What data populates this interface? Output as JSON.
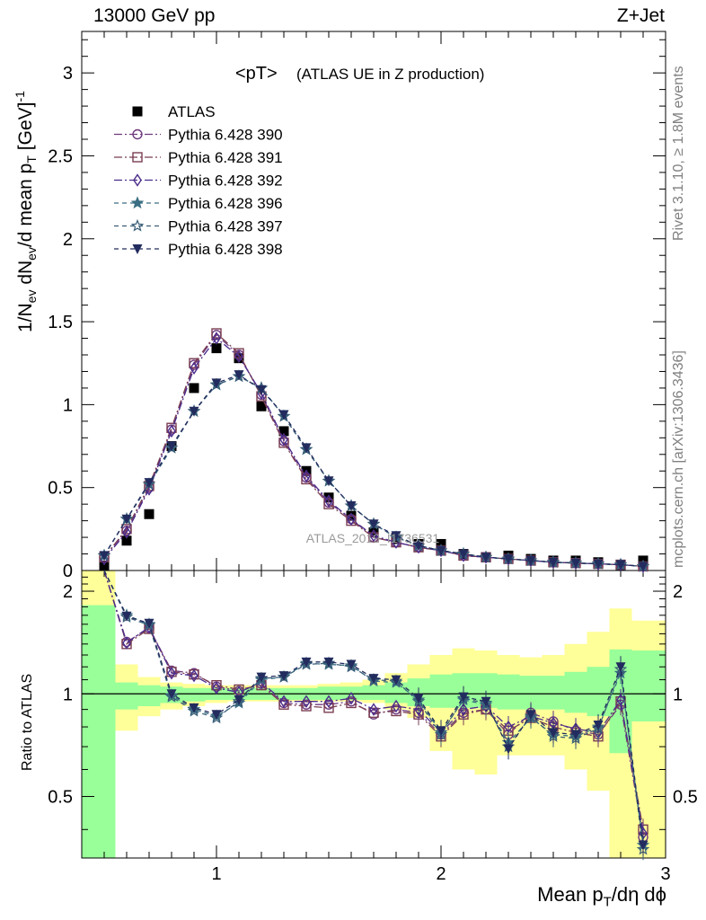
{
  "header": {
    "left": "13000 GeV pp",
    "right": "Z+Jet"
  },
  "side_labels": {
    "rivet": "Rivet 3.1.10, ≥ 1.8M events",
    "mcplots": "mcplots.cern.ch [arXiv:1306.3436]"
  },
  "watermark": "ATLAS_2019_I1736531",
  "chart_data": [
    {
      "type": "scatter",
      "title": "<pT>",
      "subtitle": "(ATLAS UE in Z production)",
      "ylabel": "1/N_ev dN_ev/d mean p_T [GeV]^-1",
      "xlabel": "Mean p_T/dη dϕ",
      "xlim": [
        0.4,
        3.0
      ],
      "ylim": [
        0,
        3.25
      ],
      "x_ticks": [
        "1",
        "2",
        "3"
      ],
      "y_ticks": [
        "0",
        "0.5",
        "1",
        "1.5",
        "2",
        "2.5",
        "3"
      ],
      "legend_position": "top-left",
      "x": [
        0.5,
        0.6,
        0.7,
        0.8,
        0.9,
        1.0,
        1.1,
        1.2,
        1.3,
        1.4,
        1.5,
        1.6,
        1.7,
        1.8,
        1.9,
        2.0,
        2.1,
        2.2,
        2.3,
        2.4,
        2.5,
        2.6,
        2.7,
        2.8,
        2.9
      ],
      "series": [
        {
          "name": "ATLAS",
          "marker": "square-filled",
          "color": "#000000",
          "dash": "",
          "values": [
            0.03,
            0.18,
            0.34,
            0.75,
            1.1,
            1.34,
            1.28,
            0.99,
            0.84,
            0.6,
            0.44,
            0.33,
            0.23,
            0.19,
            0.16,
            0.16,
            0.1,
            0.08,
            0.09,
            0.07,
            0.06,
            0.06,
            0.05,
            0.03,
            0.06
          ]
        },
        {
          "name": "Pythia 6.428 390",
          "marker": "circle-open",
          "color": "#6e3a7e",
          "dash": "9,3,2,3",
          "values": [
            0.08,
            0.24,
            0.5,
            0.85,
            1.24,
            1.42,
            1.3,
            1.06,
            0.78,
            0.56,
            0.41,
            0.31,
            0.2,
            0.17,
            0.14,
            0.12,
            0.09,
            0.08,
            0.07,
            0.06,
            0.05,
            0.045,
            0.04,
            0.035,
            0.025
          ]
        },
        {
          "name": "Pythia 6.428 391",
          "marker": "square-open",
          "color": "#7a3e52",
          "dash": "9,3,2,3",
          "values": [
            0.08,
            0.25,
            0.51,
            0.86,
            1.25,
            1.43,
            1.31,
            1.05,
            0.77,
            0.55,
            0.4,
            0.3,
            0.2,
            0.17,
            0.14,
            0.12,
            0.09,
            0.08,
            0.07,
            0.06,
            0.05,
            0.045,
            0.04,
            0.035,
            0.025
          ]
        },
        {
          "name": "Pythia 6.428 392",
          "marker": "diamond-open",
          "color": "#4b2c8c",
          "dash": "9,3,2,3",
          "values": [
            0.07,
            0.23,
            0.49,
            0.84,
            1.22,
            1.4,
            1.29,
            1.07,
            0.79,
            0.57,
            0.42,
            0.31,
            0.21,
            0.17,
            0.14,
            0.12,
            0.09,
            0.08,
            0.07,
            0.06,
            0.05,
            0.045,
            0.04,
            0.035,
            0.025
          ]
        },
        {
          "name": "Pythia 6.428 396",
          "marker": "star-filled",
          "color": "#3a6e82",
          "dash": "5,4",
          "values": [
            0.09,
            0.31,
            0.52,
            0.74,
            0.96,
            1.12,
            1.17,
            1.1,
            0.93,
            0.73,
            0.54,
            0.39,
            0.28,
            0.2,
            0.15,
            0.12,
            0.1,
            0.08,
            0.07,
            0.06,
            0.05,
            0.045,
            0.04,
            0.035,
            0.025
          ]
        },
        {
          "name": "Pythia 6.428 397",
          "marker": "star-open",
          "color": "#3a5e78",
          "dash": "5,4",
          "values": [
            0.09,
            0.31,
            0.52,
            0.74,
            0.96,
            1.12,
            1.17,
            1.1,
            0.93,
            0.73,
            0.54,
            0.39,
            0.28,
            0.2,
            0.15,
            0.12,
            0.1,
            0.08,
            0.07,
            0.06,
            0.05,
            0.045,
            0.04,
            0.035,
            0.025
          ]
        },
        {
          "name": "Pythia 6.428 398",
          "marker": "triangle-down-filled",
          "color": "#232c5e",
          "dash": "5,4",
          "values": [
            0.09,
            0.31,
            0.53,
            0.75,
            0.96,
            1.13,
            1.18,
            1.09,
            0.94,
            0.74,
            0.54,
            0.39,
            0.28,
            0.21,
            0.15,
            0.12,
            0.1,
            0.08,
            0.07,
            0.06,
            0.05,
            0.045,
            0.04,
            0.035,
            0.025
          ]
        }
      ]
    },
    {
      "type": "line",
      "ylabel": "Ratio to ATLAS",
      "xlim": [
        0.4,
        3.0
      ],
      "ylim": [
        0.33,
        2.3
      ],
      "y_ticks": [
        "0.5",
        "1",
        "2"
      ],
      "reference_line": 1,
      "x_edges": [
        0.4,
        0.55,
        0.65,
        0.75,
        0.85,
        0.95,
        1.05,
        1.15,
        1.25,
        1.35,
        1.45,
        1.55,
        1.65,
        1.75,
        1.85,
        1.95,
        2.05,
        2.15,
        2.25,
        2.35,
        2.45,
        2.55,
        2.65,
        2.75,
        2.85,
        2.95,
        3.0
      ],
      "band_stat": {
        "color": "#99ff99",
        "lower": [
          0.33,
          0.9,
          0.92,
          0.94,
          0.95,
          0.96,
          0.96,
          0.96,
          0.96,
          0.96,
          0.96,
          0.96,
          0.96,
          0.94,
          0.92,
          0.91,
          0.91,
          0.91,
          0.9,
          0.9,
          0.9,
          0.88,
          0.86,
          0.67,
          0.83,
          0.83
        ],
        "upper": [
          1.82,
          1.08,
          1.06,
          1.05,
          1.04,
          1.04,
          1.04,
          1.04,
          1.04,
          1.04,
          1.05,
          1.05,
          1.06,
          1.08,
          1.11,
          1.14,
          1.15,
          1.15,
          1.14,
          1.13,
          1.13,
          1.16,
          1.2,
          1.35,
          1.34,
          1.34
        ]
      },
      "band_total": {
        "color": "#ffff99",
        "lower": [
          0.33,
          0.78,
          0.86,
          0.9,
          0.92,
          0.94,
          0.95,
          0.95,
          0.95,
          0.95,
          0.95,
          0.95,
          0.94,
          0.9,
          0.85,
          0.68,
          0.6,
          0.58,
          0.66,
          0.66,
          0.66,
          0.6,
          0.52,
          0.33,
          0.33,
          0.33
        ],
        "upper": [
          2.3,
          1.22,
          1.12,
          1.08,
          1.07,
          1.06,
          1.06,
          1.06,
          1.06,
          1.06,
          1.07,
          1.08,
          1.1,
          1.15,
          1.22,
          1.3,
          1.36,
          1.34,
          1.3,
          1.28,
          1.3,
          1.4,
          1.52,
          1.78,
          1.64,
          1.64
        ]
      },
      "x": [
        0.5,
        0.6,
        0.7,
        0.8,
        0.9,
        1.0,
        1.1,
        1.2,
        1.3,
        1.4,
        1.5,
        1.6,
        1.7,
        1.8,
        1.9,
        2.0,
        2.1,
        2.2,
        2.3,
        2.4,
        2.5,
        2.6,
        2.7,
        2.8,
        2.9
      ],
      "series": [
        {
          "name": "Pythia 6.428 390",
          "values": [
            2.5,
            1.42,
            1.56,
            1.17,
            1.15,
            1.05,
            1.02,
            1.07,
            0.94,
            0.93,
            0.93,
            0.95,
            0.87,
            0.9,
            0.88,
            0.76,
            0.88,
            0.9,
            0.76,
            0.88,
            0.83,
            0.78,
            0.76,
            0.93,
            0.38
          ]
        },
        {
          "name": "Pythia 6.428 391",
          "values": [
            2.5,
            1.4,
            1.55,
            1.16,
            1.14,
            1.06,
            1.03,
            1.06,
            0.93,
            0.92,
            0.91,
            0.94,
            0.88,
            0.89,
            0.87,
            0.75,
            0.87,
            0.9,
            0.78,
            0.85,
            0.8,
            0.77,
            0.75,
            0.95,
            0.4
          ]
        },
        {
          "name": "Pythia 6.428 392",
          "values": [
            2.5,
            1.41,
            1.57,
            1.15,
            1.13,
            1.04,
            1.01,
            1.08,
            0.95,
            0.95,
            0.95,
            0.97,
            0.9,
            0.92,
            0.9,
            0.77,
            0.9,
            0.92,
            0.8,
            0.86,
            0.82,
            0.79,
            0.77,
            0.96,
            0.39
          ]
        },
        {
          "name": "Pythia 6.428 396",
          "values": [
            2.5,
            1.7,
            1.6,
            0.99,
            0.9,
            0.86,
            0.94,
            1.1,
            1.12,
            1.23,
            1.22,
            1.21,
            1.09,
            1.08,
            0.96,
            0.77,
            0.96,
            0.93,
            0.72,
            0.85,
            0.76,
            0.75,
            0.8,
            1.15,
            0.36
          ]
        },
        {
          "name": "Pythia 6.428 397",
          "values": [
            2.5,
            1.68,
            1.59,
            0.98,
            0.89,
            0.85,
            0.95,
            1.11,
            1.12,
            1.22,
            1.23,
            1.2,
            1.1,
            1.09,
            0.95,
            0.76,
            0.97,
            0.94,
            0.7,
            0.86,
            0.75,
            0.74,
            0.79,
            1.18,
            0.35
          ]
        },
        {
          "name": "Pythia 6.428 398",
          "values": [
            2.5,
            1.69,
            1.61,
            1.0,
            0.91,
            0.87,
            0.96,
            1.12,
            1.13,
            1.24,
            1.24,
            1.22,
            1.11,
            1.1,
            0.97,
            0.78,
            0.98,
            0.95,
            0.69,
            0.87,
            0.77,
            0.76,
            0.81,
            1.2,
            0.36
          ]
        }
      ]
    }
  ]
}
